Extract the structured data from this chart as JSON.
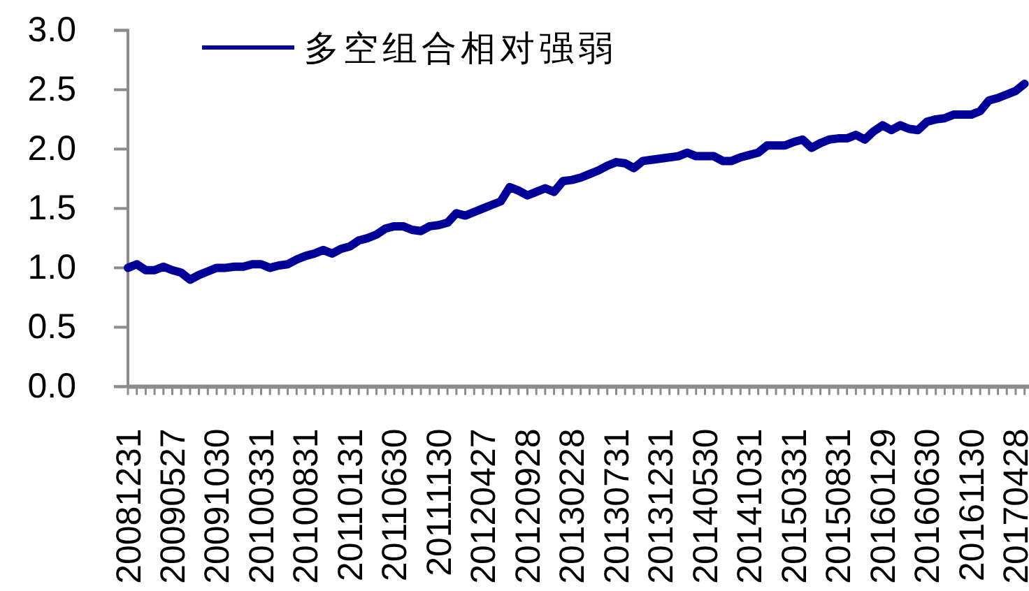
{
  "chart_data": {
    "type": "line",
    "categories": [
      "20081231",
      null,
      null,
      null,
      null,
      "20090527",
      null,
      null,
      null,
      null,
      "20091030",
      null,
      null,
      null,
      null,
      "20100331",
      null,
      null,
      null,
      null,
      "20100831",
      null,
      null,
      null,
      null,
      "20110131",
      null,
      null,
      null,
      null,
      "20110630",
      null,
      null,
      null,
      null,
      "20111130",
      null,
      null,
      null,
      null,
      "20120427",
      null,
      null,
      null,
      null,
      "20120928",
      null,
      null,
      null,
      null,
      "20130228",
      null,
      null,
      null,
      null,
      "20130731",
      null,
      null,
      null,
      null,
      "20131231",
      null,
      null,
      null,
      null,
      "20140530",
      null,
      null,
      null,
      null,
      "20141031",
      null,
      null,
      null,
      null,
      "20150331",
      null,
      null,
      null,
      null,
      "20150831",
      null,
      null,
      null,
      null,
      "20160129",
      null,
      null,
      null,
      null,
      "20160630",
      null,
      null,
      null,
      null,
      "20161130",
      null,
      null,
      null,
      null,
      "20170428",
      null
    ],
    "series": [
      {
        "name": "多空组合相对强弱",
        "color": "#000099",
        "values": [
          1.0,
          1.03,
          0.98,
          0.98,
          1.01,
          0.98,
          0.96,
          0.9,
          0.94,
          0.97,
          1.0,
          1.0,
          1.01,
          1.01,
          1.03,
          1.03,
          1.0,
          1.02,
          1.03,
          1.07,
          1.1,
          1.12,
          1.15,
          1.12,
          1.16,
          1.18,
          1.23,
          1.25,
          1.28,
          1.33,
          1.35,
          1.35,
          1.32,
          1.31,
          1.35,
          1.36,
          1.38,
          1.46,
          1.44,
          1.47,
          1.5,
          1.53,
          1.56,
          1.68,
          1.65,
          1.61,
          1.64,
          1.67,
          1.64,
          1.73,
          1.74,
          1.76,
          1.79,
          1.82,
          1.86,
          1.89,
          1.88,
          1.84,
          1.9,
          1.91,
          1.92,
          1.93,
          1.94,
          1.97,
          1.94,
          1.94,
          1.94,
          1.9,
          1.9,
          1.93,
          1.95,
          1.97,
          2.03,
          2.03,
          2.03,
          2.06,
          2.08,
          2.01,
          2.05,
          2.08,
          2.09,
          2.09,
          2.12,
          2.08,
          2.15,
          2.2,
          2.16,
          2.2,
          2.17,
          2.16,
          2.23,
          2.25,
          2.26,
          2.29,
          2.29,
          2.29,
          2.32,
          2.41,
          2.43,
          2.46,
          2.49,
          2.55
        ]
      }
    ],
    "ylim": [
      0,
      3
    ],
    "yticks": [
      {
        "value": 0,
        "label": "0.0"
      },
      {
        "value": 0.5,
        "label": "0.5"
      },
      {
        "value": 1,
        "label": "1.0"
      },
      {
        "value": 1.5,
        "label": "1.5"
      },
      {
        "value": 2,
        "label": "2.0"
      },
      {
        "value": 2.5,
        "label": "2.5"
      },
      {
        "value": 3,
        "label": "3.0"
      }
    ],
    "legend": "top left",
    "grid": false,
    "line_style": "solid"
  }
}
